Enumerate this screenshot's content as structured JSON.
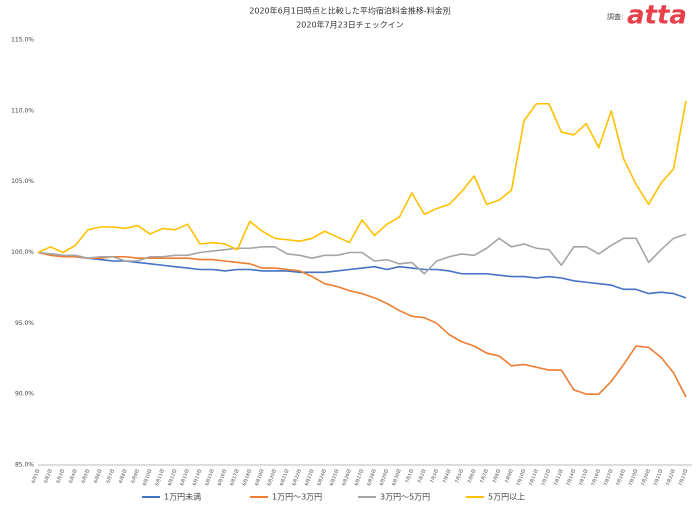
{
  "logo": {
    "source_label": "調査:",
    "brand": "atta"
  },
  "chart_data": {
    "type": "line",
    "title": "2020年6月1日時点と比較した平均宿泊料金推移-料金別",
    "subtitle": "2020年7月23日チェックイン",
    "categories": [
      "6月1日",
      "6月2日",
      "6月3日",
      "6月4日",
      "6月5日",
      "6月6日",
      "6月7日",
      "6月8日",
      "6月9日",
      "6月10日",
      "6月11日",
      "6月12日",
      "6月13日",
      "6月14日",
      "6月15日",
      "6月16日",
      "6月17日",
      "6月18日",
      "6月19日",
      "6月20日",
      "6月21日",
      "6月22日",
      "6月23日",
      "6月24日",
      "6月25日",
      "6月26日",
      "6月27日",
      "6月28日",
      "6月29日",
      "6月30日",
      "7月1日",
      "7月2日",
      "7月3日",
      "7月4日",
      "7月5日",
      "7月6日",
      "7月7日",
      "7月8日",
      "7月9日",
      "7月10日",
      "7月11日",
      "7月12日",
      "7月13日",
      "7月14日",
      "7月15日",
      "7月16日",
      "7月17日",
      "7月18日",
      "7月19日",
      "7月20日",
      "7月21日",
      "7月22日",
      "7月23日"
    ],
    "series": [
      {
        "name": "1万円未満",
        "color": "#4472c4",
        "values": [
          100,
          99.9,
          99.8,
          99.7,
          99.6,
          99.5,
          99.4,
          99.4,
          99.3,
          99.2,
          99.1,
          99.0,
          98.9,
          98.8,
          98.8,
          98.7,
          98.8,
          98.8,
          98.7,
          98.7,
          98.7,
          98.6,
          98.6,
          98.6,
          98.7,
          98.8,
          98.9,
          99.0,
          98.8,
          99.0,
          98.9,
          98.8,
          98.8,
          98.7,
          98.5,
          98.5,
          98.5,
          98.4,
          98.3,
          98.3,
          98.2,
          98.3,
          98.2,
          98.0,
          97.9,
          97.8,
          97.7,
          97.4,
          97.4,
          97.1,
          97.2,
          97.1,
          96.8
        ]
      },
      {
        "name": "1万円～3万円",
        "color": "#ed7d31",
        "values": [
          100,
          99.8,
          99.7,
          99.7,
          99.6,
          99.6,
          99.7,
          99.7,
          99.6,
          99.6,
          99.6,
          99.6,
          99.6,
          99.5,
          99.5,
          99.4,
          99.3,
          99.2,
          98.9,
          98.9,
          98.8,
          98.7,
          98.3,
          97.8,
          97.6,
          97.3,
          97.1,
          96.8,
          96.4,
          95.9,
          95.5,
          95.4,
          95.0,
          94.2,
          93.7,
          93.4,
          92.9,
          92.7,
          92.0,
          92.1,
          91.9,
          91.7,
          91.7,
          90.3,
          90.0,
          90.0,
          90.9,
          92.1,
          93.4,
          93.3,
          92.6,
          91.5,
          89.8
        ]
      },
      {
        "name": "3万円～5万円",
        "color": "#a5a5a5",
        "values": [
          100,
          99.9,
          99.8,
          99.8,
          99.6,
          99.7,
          99.7,
          99.4,
          99.4,
          99.7,
          99.7,
          99.8,
          99.8,
          100.0,
          100.1,
          100.2,
          100.3,
          100.3,
          100.4,
          100.4,
          99.9,
          99.8,
          99.6,
          99.8,
          99.8,
          100.0,
          100.0,
          99.4,
          99.5,
          99.2,
          99.3,
          98.5,
          99.4,
          99.7,
          99.9,
          99.8,
          100.3,
          101.0,
          100.4,
          100.6,
          100.3,
          100.2,
          99.1,
          100.4,
          100.4,
          99.9,
          100.5,
          101.0,
          101.0,
          99.3,
          100.2,
          101.0,
          101.3
        ]
      },
      {
        "name": "5万円以上",
        "color": "#ffc000",
        "values": [
          100,
          100.4,
          100.0,
          100.5,
          101.6,
          101.8,
          101.8,
          101.7,
          101.9,
          101.3,
          101.7,
          101.6,
          102.0,
          100.6,
          100.7,
          100.6,
          100.2,
          102.2,
          101.5,
          101.0,
          100.9,
          100.8,
          101.0,
          101.5,
          101.1,
          100.7,
          102.3,
          101.2,
          102.0,
          102.5,
          104.2,
          102.7,
          103.1,
          103.4,
          104.3,
          105.4,
          103.4,
          103.7,
          104.4,
          109.3,
          110.5,
          110.5,
          108.5,
          108.3,
          109.1,
          107.4,
          110.0,
          106.6,
          104.8,
          103.4,
          104.9,
          105.9,
          110.7
        ]
      }
    ],
    "ylim": [
      85,
      115
    ],
    "yticks": [
      {
        "value": 85,
        "label": "85.0%"
      },
      {
        "value": 90,
        "label": "90.0%"
      },
      {
        "value": 95,
        "label": "95.0%"
      },
      {
        "value": 100,
        "label": "100.0%"
      },
      {
        "value": 105,
        "label": "105.0%"
      },
      {
        "value": 110,
        "label": "110.0%"
      },
      {
        "value": 115,
        "label": "115.0%"
      }
    ],
    "grid": false,
    "legend": "bottom"
  }
}
